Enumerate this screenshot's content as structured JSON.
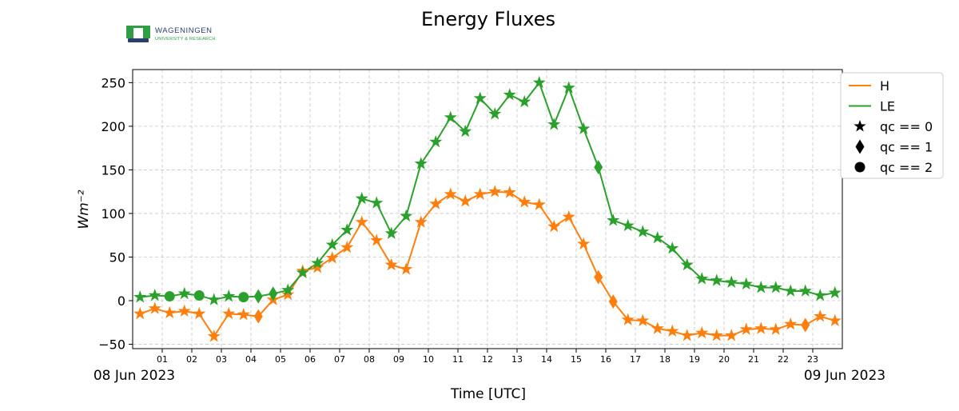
{
  "logo": {
    "name": "WAGENINGEN",
    "sub": "UNIVERSITY & RESEARCH",
    "colors": {
      "green": "#2f9e44",
      "navy": "#2a3f6e"
    }
  },
  "chart_data": {
    "type": "line",
    "title": "Energy Fluxes",
    "xlabel": "Time [UTC]",
    "ylabel": "Wm⁻²",
    "ylim": [
      -55,
      265
    ],
    "yticks": [
      -50,
      0,
      50,
      100,
      150,
      200,
      250
    ],
    "ytick_labels": [
      "−50",
      "0",
      "50",
      "100",
      "150",
      "200",
      "250"
    ],
    "xlim": [
      0,
      24
    ],
    "xticks": [
      1,
      2,
      3,
      4,
      5,
      6,
      7,
      8,
      9,
      10,
      11,
      12,
      13,
      14,
      15,
      16,
      17,
      18,
      19,
      20,
      21,
      22,
      23
    ],
    "xtick_labels": [
      "01",
      "02",
      "03",
      "04",
      "05",
      "06",
      "07",
      "08",
      "09",
      "10",
      "11",
      "12",
      "13",
      "14",
      "15",
      "16",
      "17",
      "18",
      "19",
      "20",
      "21",
      "22",
      "23"
    ],
    "date_labels": {
      "start": "08 Jun 2023",
      "end": "09 Jun 2023"
    },
    "grid": true,
    "legend_position": "upper-right-outside",
    "legend": [
      {
        "label": "H",
        "kind": "line",
        "color": "#ff7f0e"
      },
      {
        "label": "LE",
        "kind": "line",
        "color": "#2ca02c"
      },
      {
        "label": "qc == 0",
        "kind": "marker",
        "marker": "star"
      },
      {
        "label": "qc == 1",
        "kind": "marker",
        "marker": "diamond"
      },
      {
        "label": "qc == 2",
        "kind": "marker",
        "marker": "circle"
      }
    ],
    "x": [
      0.25,
      0.75,
      1.25,
      1.75,
      2.25,
      2.75,
      3.25,
      3.75,
      4.25,
      4.75,
      5.25,
      5.75,
      6.25,
      6.75,
      7.25,
      7.75,
      8.25,
      8.75,
      9.25,
      9.75,
      10.25,
      10.75,
      11.25,
      11.75,
      12.25,
      12.75,
      13.25,
      13.75,
      14.25,
      14.75,
      15.25,
      15.75,
      16.25,
      16.75,
      17.25,
      17.75,
      18.25,
      18.75,
      19.25,
      19.75,
      20.25,
      20.75,
      21.25,
      21.75,
      22.25,
      22.75,
      23.25,
      23.75
    ],
    "series": [
      {
        "name": "H",
        "color": "#ff7f0e",
        "values": [
          -15,
          -9,
          -14,
          -12,
          -15,
          -41,
          -15,
          -16,
          -18,
          1,
          7,
          34,
          38,
          49,
          61,
          90,
          69,
          41,
          36,
          90,
          111,
          122,
          114,
          122,
          125,
          124,
          113,
          110,
          85,
          96,
          65,
          27,
          -1,
          -22,
          -23,
          -32,
          -35,
          -40,
          -37,
          -40,
          -40,
          -33,
          -32,
          -33,
          -27,
          -28,
          -18,
          -23
        ],
        "qc": [
          0,
          0,
          0,
          0,
          0,
          0,
          0,
          0,
          1,
          0,
          0,
          0,
          0,
          0,
          0,
          0,
          0,
          0,
          0,
          0,
          0,
          0,
          0,
          0,
          0,
          0,
          0,
          0,
          0,
          0,
          0,
          1,
          1,
          0,
          0,
          0,
          0,
          0,
          0,
          0,
          0,
          0,
          0,
          0,
          0,
          1,
          0,
          0
        ]
      },
      {
        "name": "LE",
        "color": "#2ca02c",
        "values": [
          4,
          6,
          5,
          8,
          6,
          1,
          5,
          4,
          5,
          8,
          12,
          32,
          43,
          64,
          81,
          117,
          112,
          77,
          97,
          157,
          182,
          210,
          194,
          232,
          214,
          236,
          228,
          250,
          202,
          244,
          197,
          153,
          92,
          86,
          79,
          72,
          60,
          41,
          25,
          23,
          21,
          19,
          15,
          15,
          11,
          11,
          6,
          9
        ],
        "qc": [
          0,
          0,
          2,
          0,
          2,
          0,
          0,
          2,
          1,
          1,
          0,
          0,
          0,
          0,
          0,
          0,
          0,
          0,
          0,
          0,
          0,
          0,
          0,
          0,
          0,
          0,
          0,
          0,
          0,
          0,
          0,
          1,
          0,
          0,
          0,
          0,
          0,
          0,
          0,
          0,
          0,
          0,
          0,
          0,
          0,
          0,
          0,
          0
        ]
      }
    ]
  }
}
